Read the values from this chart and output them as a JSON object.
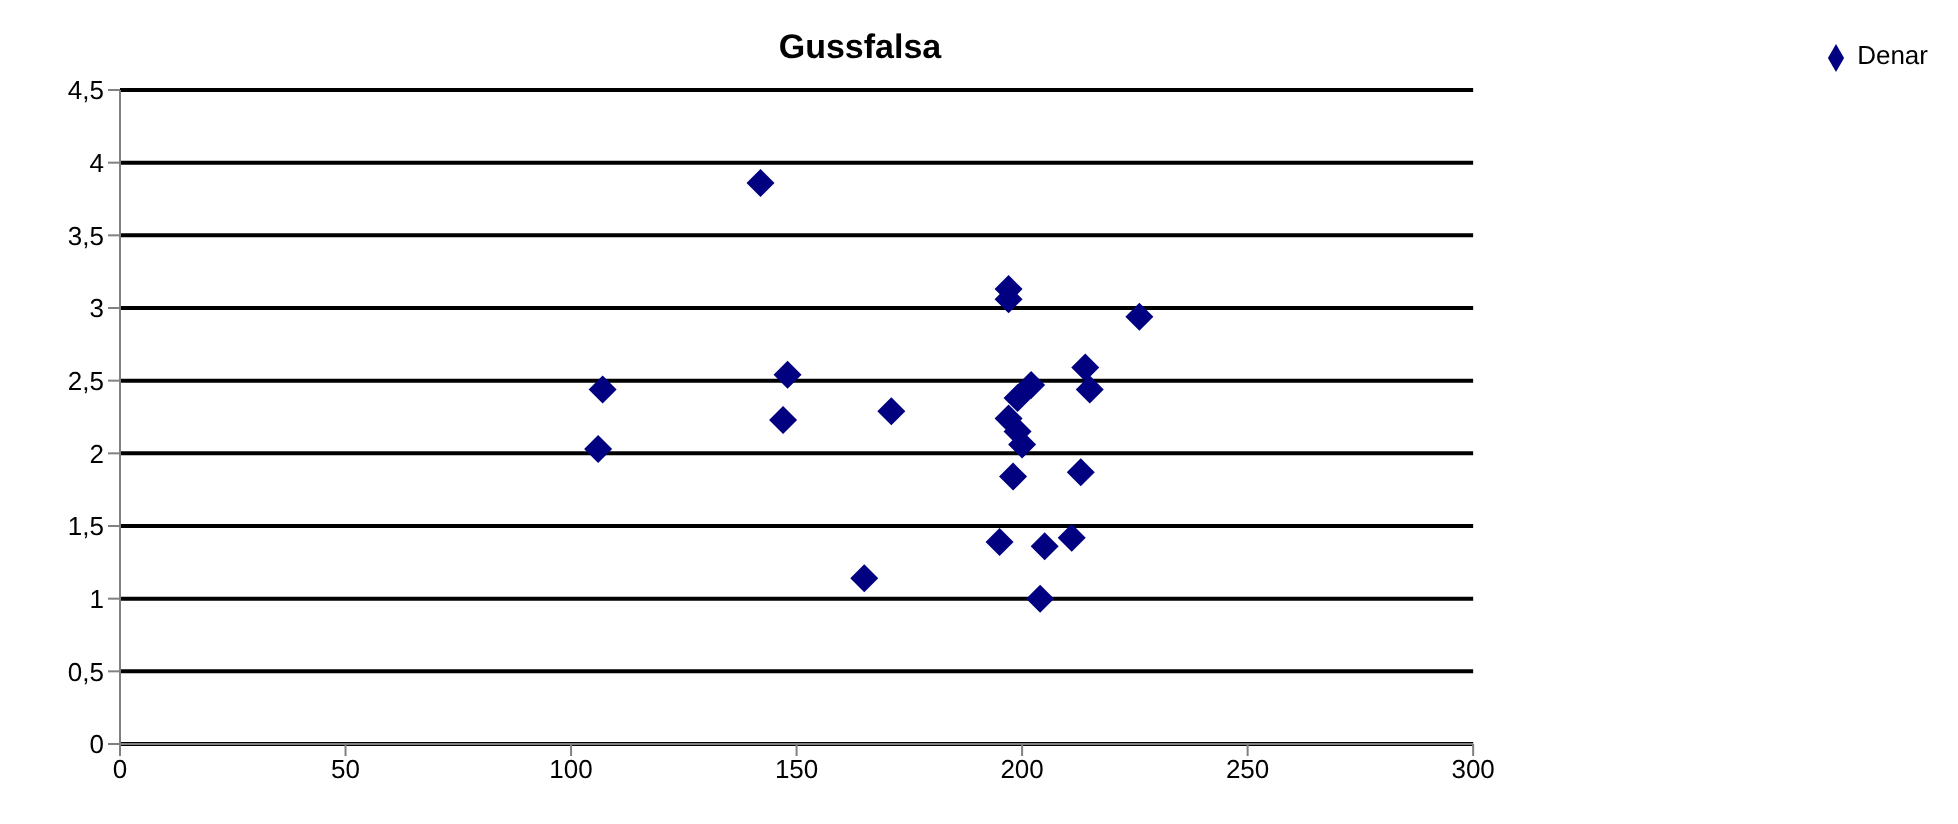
{
  "chart_data": {
    "type": "scatter",
    "title": "Gussfalsa",
    "series": [
      {
        "name": "Denar",
        "color": "#000080",
        "x": [
          106,
          107,
          142,
          147,
          148,
          165,
          171,
          195,
          197,
          197,
          197,
          198,
          199,
          199,
          200,
          202,
          204,
          205,
          211,
          213,
          214,
          215,
          226
        ],
        "values": [
          2.03,
          2.44,
          3.86,
          2.23,
          2.54,
          1.14,
          2.29,
          1.39,
          3.13,
          3.06,
          2.24,
          1.84,
          2.38,
          2.15,
          2.06,
          2.47,
          1.0,
          1.36,
          1.42,
          1.87,
          2.59,
          2.44,
          2.94
        ]
      }
    ],
    "xlim": [
      0,
      300
    ],
    "xticks": [
      0,
      50,
      100,
      150,
      200,
      250,
      300
    ],
    "ylim": [
      0,
      4.5
    ],
    "yticks": [
      0,
      {
        "value": 0.5,
        "label": "0,5"
      },
      1,
      {
        "value": 1.5,
        "label": "1,5"
      },
      2,
      {
        "value": 2.5,
        "label": "2,5"
      },
      3,
      {
        "value": 3.5,
        "label": "3,5"
      },
      4,
      {
        "value": 4.5,
        "label": "4,5"
      }
    ],
    "grid": "y",
    "legend": "top right",
    "marker": "diamond"
  }
}
